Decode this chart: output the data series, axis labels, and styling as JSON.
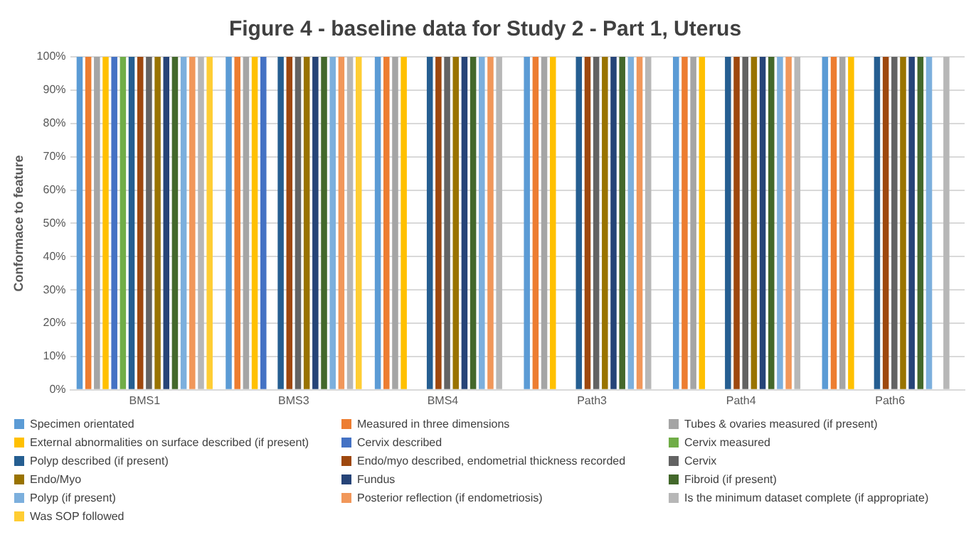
{
  "chart_data": {
    "type": "bar",
    "title": "Figure 4 - baseline data for Study 2 - Part 1, Uterus",
    "ylabel": "Conformace to feature",
    "categories": [
      "BMS1",
      "BMS3",
      "BMS4",
      "Path3",
      "Path4",
      "Path6"
    ],
    "ylim": [
      0,
      1
    ],
    "yticks": [
      {
        "value": 0,
        "label": "0%"
      },
      {
        "value": 0.1,
        "label": "10%"
      },
      {
        "value": 0.2,
        "label": "20%"
      },
      {
        "value": 0.3,
        "label": "30%"
      },
      {
        "value": 0.4,
        "label": "40%"
      },
      {
        "value": 0.5,
        "label": "50%"
      },
      {
        "value": 0.6,
        "label": "60%"
      },
      {
        "value": 0.7,
        "label": "70%"
      },
      {
        "value": 0.8,
        "label": "80%"
      },
      {
        "value": 0.9,
        "label": "90%"
      },
      {
        "value": 1,
        "label": "100%"
      }
    ],
    "grid": "y",
    "legend": "bottom",
    "series": [
      {
        "name": "Specimen orientated",
        "color": "#5b9bd5",
        "values": [
          1,
          1,
          1,
          1,
          1,
          1
        ]
      },
      {
        "name": "Measured in three dimensions",
        "color": "#ed7d31",
        "values": [
          1,
          1,
          1,
          1,
          1,
          1
        ]
      },
      {
        "name": "Tubes & ovaries measured (if present)",
        "color": "#a5a5a5",
        "values": [
          1,
          1,
          1,
          1,
          1,
          1
        ]
      },
      {
        "name": "External abnormalities on surface described (if present)",
        "color": "#ffc000",
        "values": [
          1,
          1,
          1,
          1,
          1,
          1
        ]
      },
      {
        "name": "Cervix described",
        "color": "#4472c4",
        "values": [
          1,
          1,
          0,
          0,
          0,
          0
        ]
      },
      {
        "name": "Cervix measured",
        "color": "#70ad47",
        "values": [
          1,
          0,
          0,
          0,
          0,
          0
        ]
      },
      {
        "name": "Polyp described (if present)",
        "color": "#255e91",
        "values": [
          1,
          1,
          1,
          1,
          1,
          1
        ]
      },
      {
        "name": "Endo/myo described, endometrial thickness recorded",
        "color": "#9e480e",
        "values": [
          1,
          1,
          1,
          1,
          1,
          1
        ]
      },
      {
        "name": "Cervix",
        "color": "#636363",
        "values": [
          1,
          1,
          1,
          1,
          1,
          1
        ]
      },
      {
        "name": "Endo/Myo",
        "color": "#997300",
        "values": [
          1,
          1,
          1,
          1,
          1,
          1
        ]
      },
      {
        "name": "Fundus",
        "color": "#264478",
        "values": [
          1,
          1,
          1,
          1,
          1,
          1
        ]
      },
      {
        "name": "Fibroid (if present)",
        "color": "#43682b",
        "values": [
          1,
          1,
          1,
          1,
          1,
          1
        ]
      },
      {
        "name": "Polyp (if present)",
        "color": "#7cafdd",
        "values": [
          1,
          1,
          1,
          1,
          1,
          1
        ]
      },
      {
        "name": "Posterior reflection (if endometriosis)",
        "color": "#f1975a",
        "values": [
          1,
          1,
          1,
          1,
          1,
          0
        ]
      },
      {
        "name": "Is the minimum dataset complete (if appropriate)",
        "color": "#b7b7b7",
        "values": [
          1,
          1,
          1,
          1,
          1,
          1
        ]
      },
      {
        "name": "Was SOP followed",
        "color": "#ffcd33",
        "values": [
          1,
          1,
          0,
          0,
          0,
          0
        ]
      }
    ]
  }
}
